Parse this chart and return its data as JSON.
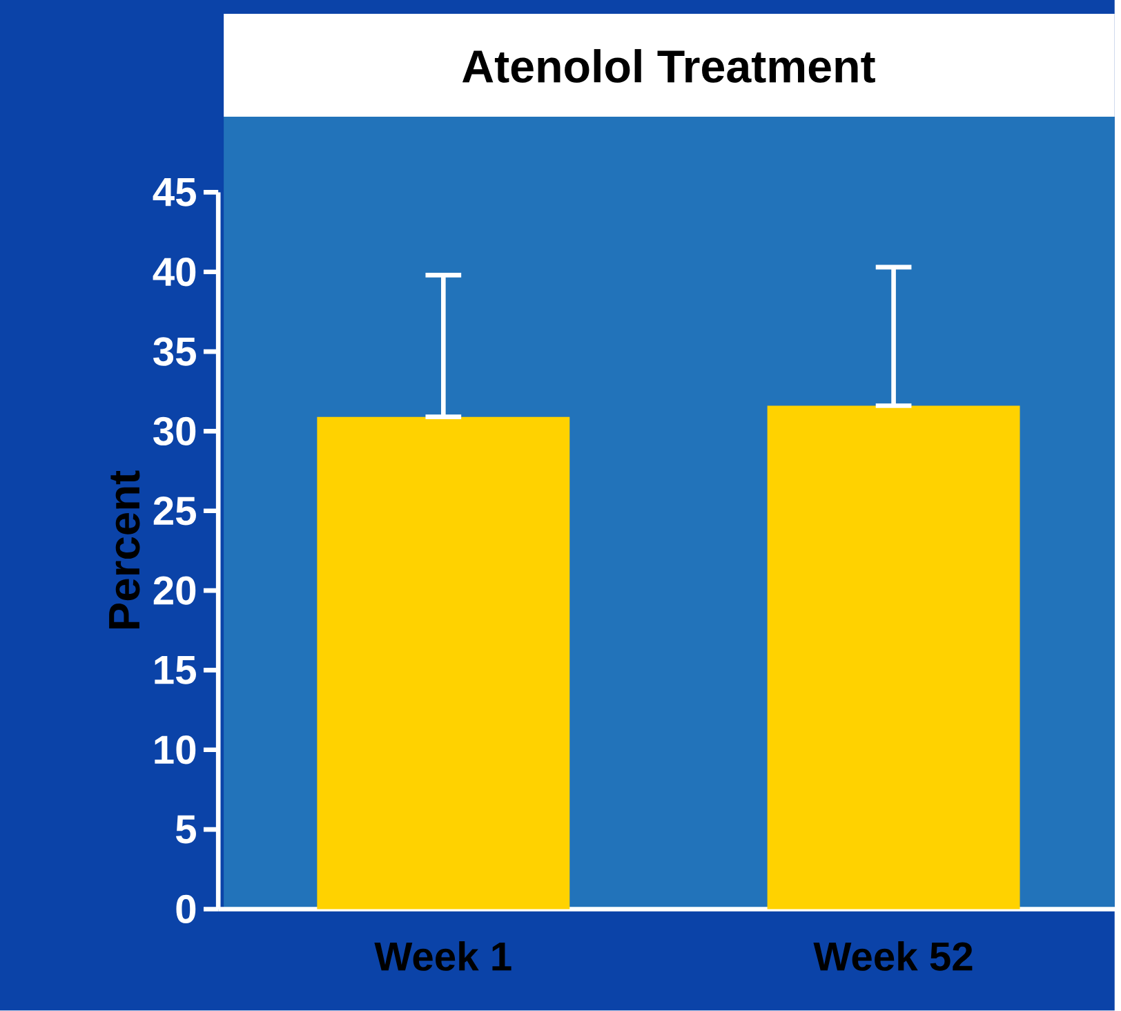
{
  "chart_data": {
    "type": "bar",
    "title": "Atenolol Treatment",
    "ylabel": "Percent",
    "categories": [
      "Week 1",
      "Week 52"
    ],
    "values": [
      30.9,
      31.6
    ],
    "color": "#ffd200",
    "errors": [
      [
        30.9,
        39.8
      ],
      [
        31.6,
        40.3
      ]
    ],
    "ylim": [
      0,
      45
    ],
    "yticks": [
      0,
      5,
      10,
      15,
      20,
      25,
      30,
      35,
      40,
      45
    ],
    "grid": false
  }
}
